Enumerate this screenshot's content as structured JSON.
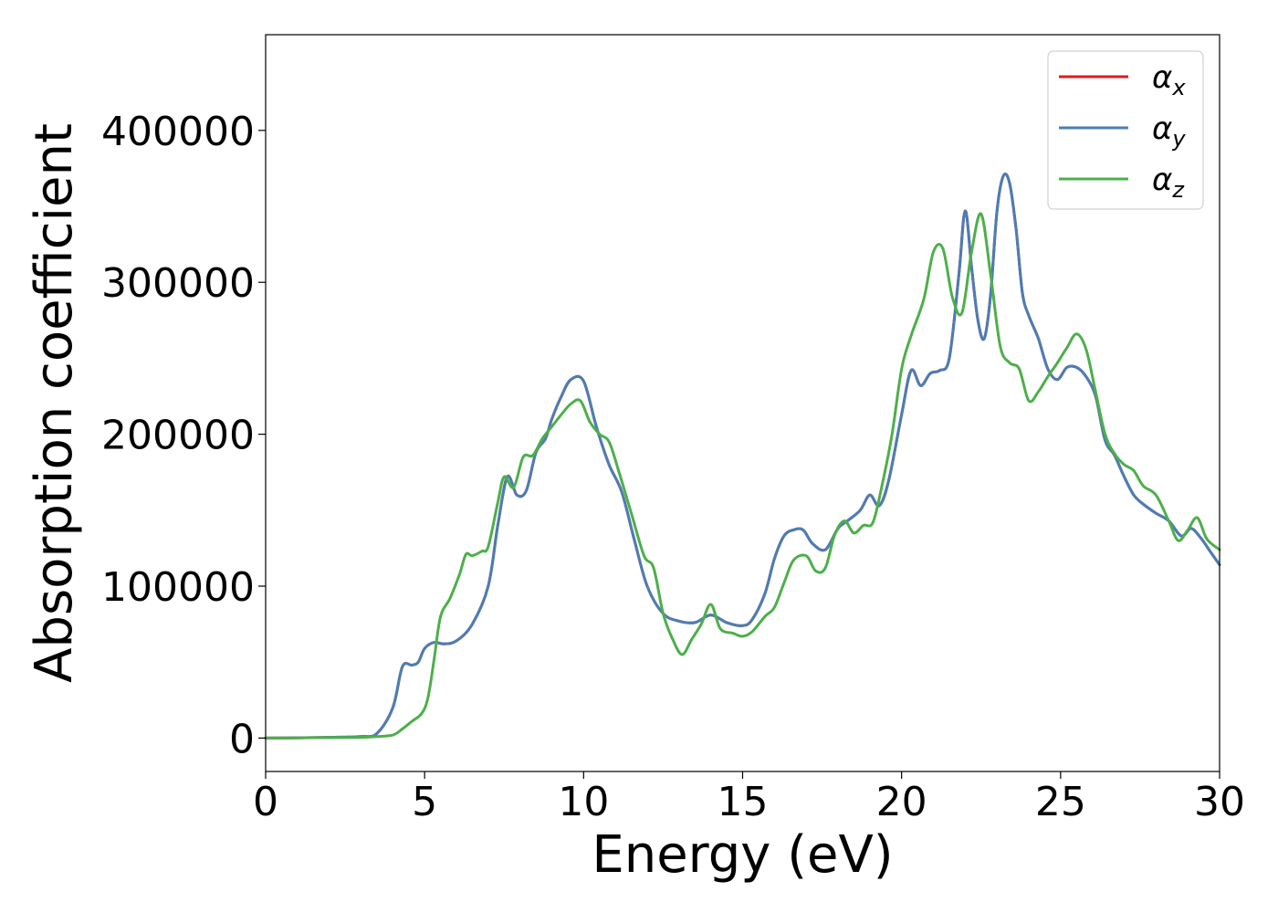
{
  "chart_data": {
    "type": "line",
    "title": "",
    "xlabel": "Energy (eV)",
    "ylabel": "Absorption coefficient",
    "xlim": [
      0,
      30
    ],
    "ylim": [
      -22000,
      463000
    ],
    "xticks": [
      0,
      5,
      10,
      15,
      20,
      25,
      30
    ],
    "yticks": [
      0,
      100000,
      200000,
      300000,
      400000
    ],
    "grid": false,
    "legend": "top-right",
    "series": [
      {
        "name": "αx",
        "symbol": "α",
        "subscript": "x",
        "color": "#e41a1c",
        "x": [
          0,
          1,
          2,
          3,
          3.5,
          4.0,
          4.3,
          4.6,
          4.8,
          5.0,
          5.3,
          5.6,
          6.0,
          6.5,
          7.0,
          7.3,
          7.6,
          7.9,
          8.2,
          8.5,
          8.8,
          9.0,
          9.3,
          9.6,
          10.0,
          10.4,
          10.8,
          11.2,
          11.6,
          12.0,
          12.5,
          13.0,
          13.5,
          14.0,
          14.5,
          15.0,
          15.3,
          15.7,
          16.0,
          16.3,
          16.6,
          16.9,
          17.2,
          17.6,
          18.0,
          18.3,
          18.7,
          19.0,
          19.3,
          19.6,
          20.0,
          20.3,
          20.6,
          20.9,
          21.2,
          21.5,
          21.8,
          22.0,
          22.2,
          22.4,
          22.6,
          22.8,
          23.0,
          23.2,
          23.4,
          23.6,
          23.8,
          24.0,
          24.3,
          24.6,
          24.9,
          25.2,
          25.5,
          25.8,
          26.1,
          26.4,
          26.7,
          27.0,
          27.3,
          27.6,
          28.0,
          28.4,
          28.8,
          29.1,
          29.4,
          29.7,
          30.0
        ],
        "values": [
          0,
          200,
          500,
          1000,
          3000,
          20000,
          47000,
          48000,
          50000,
          59000,
          63000,
          62000,
          64000,
          75000,
          100000,
          140000,
          172000,
          160000,
          163000,
          188000,
          197000,
          210000,
          225000,
          236000,
          235000,
          205000,
          180000,
          162000,
          130000,
          100000,
          82000,
          77000,
          76000,
          81000,
          76000,
          74000,
          78000,
          95000,
          118000,
          133000,
          137000,
          137000,
          128000,
          124000,
          138000,
          143000,
          150000,
          160000,
          153000,
          170000,
          213000,
          242000,
          232000,
          240000,
          242000,
          250000,
          305000,
          347000,
          310000,
          275000,
          263000,
          292000,
          347000,
          370000,
          365000,
          335000,
          293000,
          278000,
          263000,
          243000,
          236000,
          244000,
          244000,
          238000,
          225000,
          196000,
          186000,
          172000,
          160000,
          154000,
          148000,
          143000,
          133000,
          138000,
          132000,
          123000,
          114000
        ]
      },
      {
        "name": "αy",
        "symbol": "α",
        "subscript": "y",
        "color": "#4a7eb5",
        "x": [
          0,
          1,
          2,
          3,
          3.5,
          4.0,
          4.3,
          4.6,
          4.8,
          5.0,
          5.3,
          5.6,
          6.0,
          6.5,
          7.0,
          7.3,
          7.6,
          7.9,
          8.2,
          8.5,
          8.8,
          9.0,
          9.3,
          9.6,
          10.0,
          10.4,
          10.8,
          11.2,
          11.6,
          12.0,
          12.5,
          13.0,
          13.5,
          14.0,
          14.5,
          15.0,
          15.3,
          15.7,
          16.0,
          16.3,
          16.6,
          16.9,
          17.2,
          17.6,
          18.0,
          18.3,
          18.7,
          19.0,
          19.3,
          19.6,
          20.0,
          20.3,
          20.6,
          20.9,
          21.2,
          21.5,
          21.8,
          22.0,
          22.2,
          22.4,
          22.6,
          22.8,
          23.0,
          23.2,
          23.4,
          23.6,
          23.8,
          24.0,
          24.3,
          24.6,
          24.9,
          25.2,
          25.5,
          25.8,
          26.1,
          26.4,
          26.7,
          27.0,
          27.3,
          27.6,
          28.0,
          28.4,
          28.8,
          29.1,
          29.4,
          29.7,
          30.0
        ],
        "values": [
          0,
          200,
          500,
          1000,
          3000,
          20000,
          47000,
          48000,
          50000,
          59000,
          63000,
          62000,
          64000,
          75000,
          100000,
          140000,
          172000,
          160000,
          163000,
          188000,
          197000,
          210000,
          225000,
          236000,
          235000,
          205000,
          180000,
          162000,
          130000,
          100000,
          82000,
          77000,
          76000,
          81000,
          76000,
          74000,
          78000,
          95000,
          118000,
          133000,
          137000,
          137000,
          128000,
          124000,
          138000,
          143000,
          150000,
          160000,
          153000,
          170000,
          213000,
          242000,
          232000,
          240000,
          242000,
          250000,
          305000,
          347000,
          310000,
          275000,
          263000,
          292000,
          347000,
          370000,
          365000,
          335000,
          293000,
          278000,
          263000,
          243000,
          236000,
          244000,
          244000,
          238000,
          225000,
          196000,
          186000,
          172000,
          160000,
          154000,
          148000,
          143000,
          133000,
          138000,
          132000,
          123000,
          114000
        ]
      },
      {
        "name": "αz",
        "symbol": "α",
        "subscript": "z",
        "color": "#4daf4a",
        "x": [
          0,
          1,
          2,
          3,
          3.5,
          4.0,
          4.3,
          4.6,
          4.9,
          5.1,
          5.3,
          5.5,
          5.8,
          6.1,
          6.3,
          6.5,
          6.8,
          7.0,
          7.3,
          7.5,
          7.8,
          8.1,
          8.4,
          8.7,
          9.0,
          9.3,
          9.6,
          9.9,
          10.2,
          10.5,
          10.8,
          11.1,
          11.5,
          11.9,
          12.2,
          12.5,
          12.8,
          13.1,
          13.4,
          13.7,
          14.0,
          14.3,
          14.7,
          15.0,
          15.3,
          15.7,
          16.0,
          16.3,
          16.6,
          17.0,
          17.3,
          17.6,
          17.9,
          18.2,
          18.5,
          18.8,
          19.1,
          19.4,
          19.7,
          20.0,
          20.3,
          20.7,
          21.0,
          21.3,
          21.6,
          21.9,
          22.2,
          22.5,
          22.8,
          23.1,
          23.4,
          23.7,
          24.0,
          24.3,
          24.6,
          24.9,
          25.2,
          25.5,
          25.8,
          26.1,
          26.4,
          26.7,
          27.0,
          27.3,
          27.6,
          28.0,
          28.4,
          28.7,
          29.0,
          29.3,
          29.6,
          30.0
        ],
        "values": [
          0,
          100,
          300,
          500,
          1000,
          2000,
          6000,
          11000,
          16000,
          26000,
          52000,
          80000,
          92000,
          108000,
          121000,
          120000,
          123000,
          126000,
          155000,
          172000,
          165000,
          185000,
          186000,
          197000,
          205000,
          213000,
          220000,
          222000,
          208000,
          200000,
          195000,
          176000,
          148000,
          120000,
          112000,
          82000,
          65000,
          55000,
          65000,
          75000,
          88000,
          72000,
          69000,
          67000,
          70000,
          80000,
          86000,
          102000,
          117000,
          120000,
          110000,
          112000,
          134000,
          143000,
          135000,
          140000,
          142000,
          168000,
          200000,
          243000,
          265000,
          289000,
          320000,
          322000,
          290000,
          280000,
          320000,
          345000,
          305000,
          258000,
          247000,
          243000,
          222000,
          228000,
          238000,
          247000,
          257000,
          266000,
          256000,
          228000,
          200000,
          187000,
          180000,
          176000,
          166000,
          160000,
          143000,
          130000,
          137000,
          145000,
          131000,
          124000
        ]
      }
    ]
  }
}
